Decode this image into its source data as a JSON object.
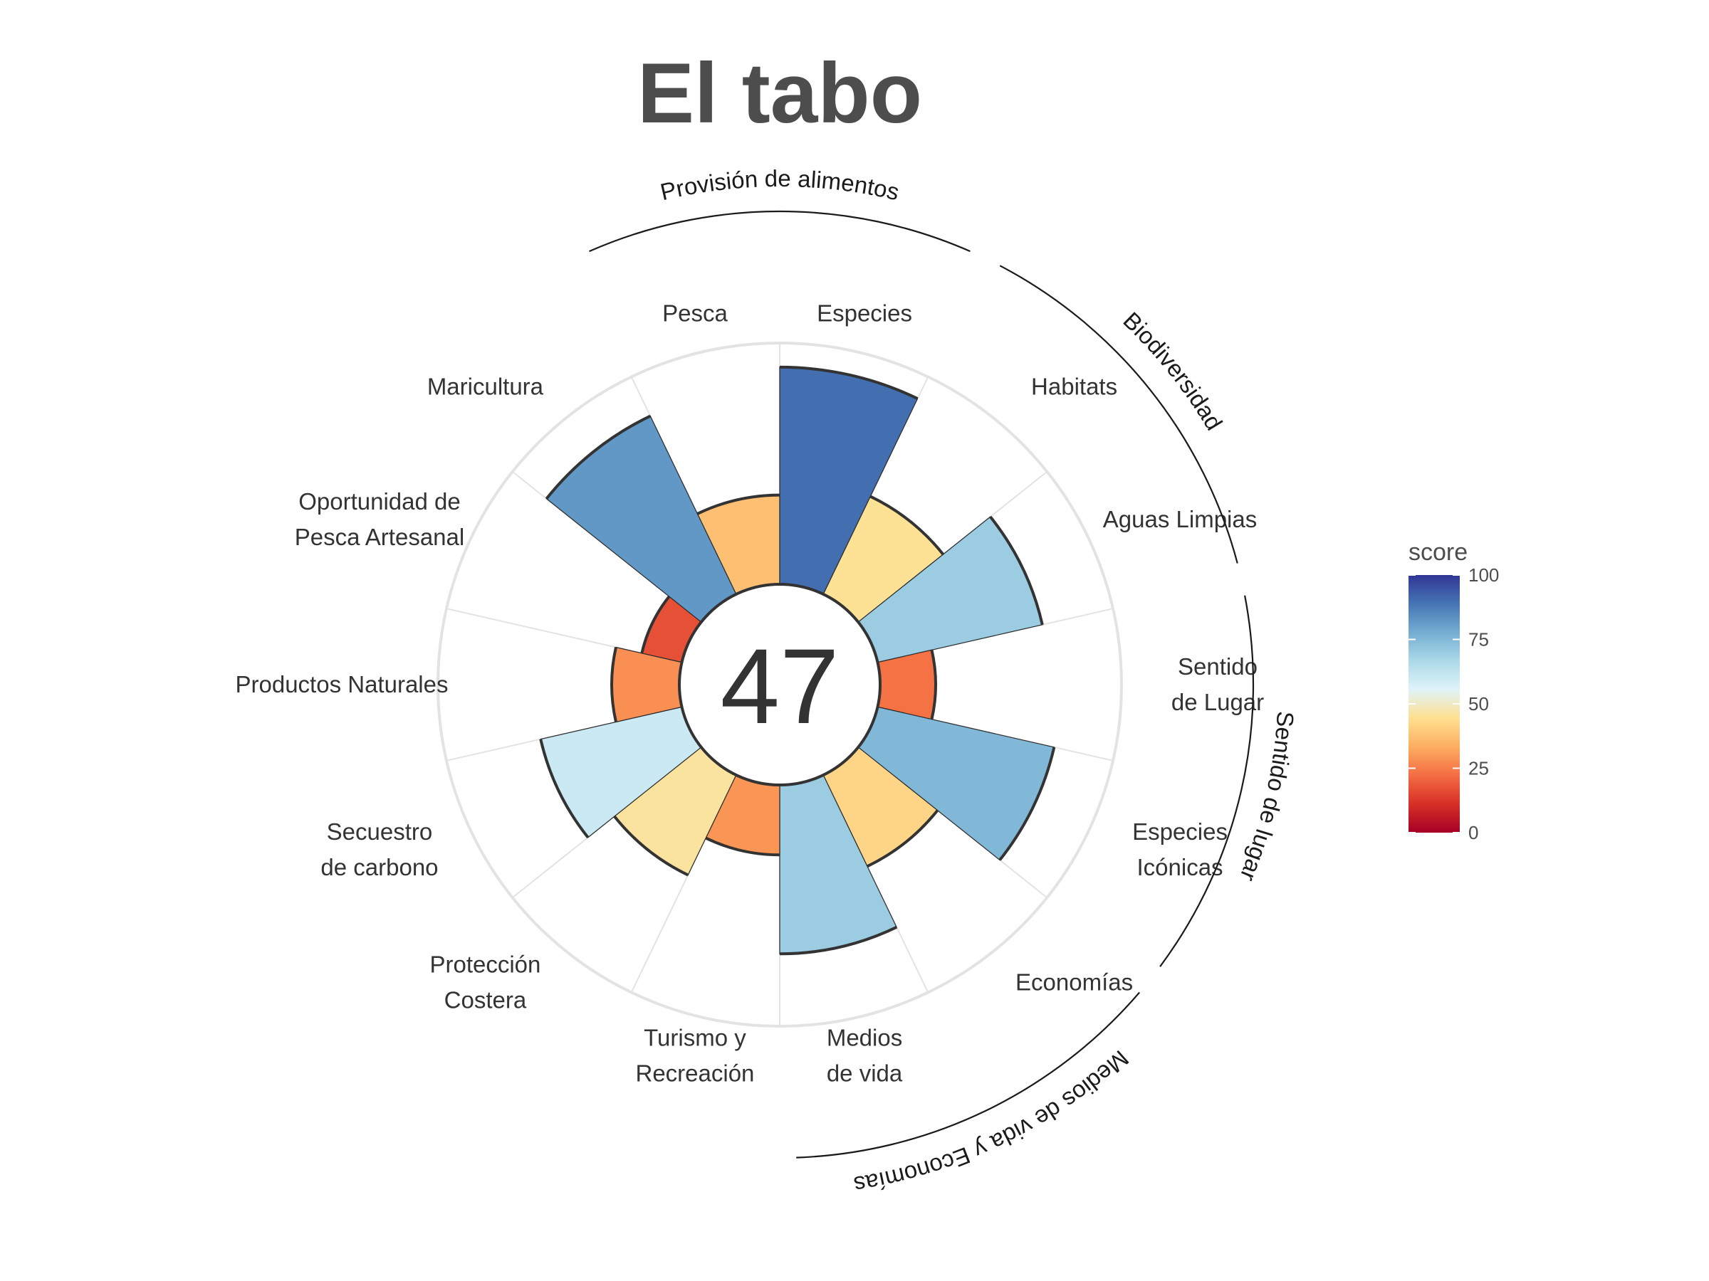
{
  "chart_data": {
    "type": "polar-bar",
    "title": "El tabo",
    "center_score": "47",
    "rmax": 100,
    "categories": [
      {
        "label": [
          "Pesca"
        ],
        "score": 37
      },
      {
        "label": [
          "Especies"
        ],
        "score": 90
      },
      {
        "label": [
          "Habitats"
        ],
        "score": 45
      },
      {
        "label": [
          "Aguas Limpias"
        ],
        "score": 70
      },
      {
        "label": [
          "Sentido",
          "de Lugar"
        ],
        "score": 23
      },
      {
        "label": [
          "Especies",
          "Icónicas"
        ],
        "score": 75
      },
      {
        "label": [
          "Economías"
        ],
        "score": 42
      },
      {
        "label": [
          "Medios",
          "de vida"
        ],
        "score": 70
      },
      {
        "label": [
          "Turismo y",
          "Recreación"
        ],
        "score": 29
      },
      {
        "label": [
          "Protección",
          "Costera"
        ],
        "score": 46
      },
      {
        "label": [
          "Secuestro",
          "de carbono"
        ],
        "score": 60
      },
      {
        "label": [
          "Productos Naturales"
        ],
        "score": 28
      },
      {
        "label": [
          "Oportunidad de",
          "Pesca Artesanal"
        ],
        "score": 17
      },
      {
        "label": [
          "Maricultura"
        ],
        "score": 82
      }
    ],
    "goal_groups": [
      {
        "name": "Provisión de alimentos"
      },
      {
        "name": "Biodiversidad"
      },
      {
        "name": "Sentido de lugar"
      },
      {
        "name": "Medios de vida y Economías"
      }
    ],
    "legend": {
      "title": "score",
      "ticks": [
        "0",
        "25",
        "50",
        "75",
        "100"
      ],
      "colors": [
        "#a50026",
        "#d73027",
        "#f46d43",
        "#fdae61",
        "#fee090",
        "#e0f3f8",
        "#abd9e9",
        "#74add1",
        "#4575b4",
        "#313695"
      ]
    },
    "grid": true
  }
}
